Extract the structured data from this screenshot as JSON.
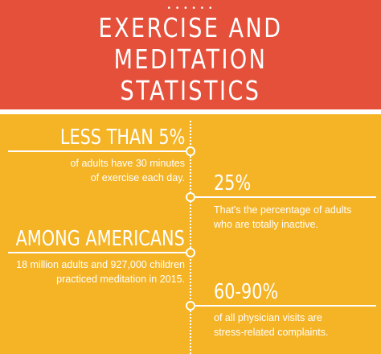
{
  "title": {
    "line1": "EXERCISE AND",
    "line2": "MEDITATION",
    "line3": "STATISTICS"
  },
  "stats": [
    {
      "heading": "LESS THAN 5%",
      "line1": "of adults have 30 minutes",
      "line2": "of exercise each day."
    },
    {
      "heading": "25%",
      "line1": "That's the percentage of adults",
      "line2": "who are totally inactive."
    },
    {
      "heading": "AMONG AMERICANS",
      "line1": "18 million adults and 927,000 children",
      "line2": "practiced meditation in 2015."
    },
    {
      "heading": "60-90%",
      "line1": "of all physician visits are",
      "line2": "stress-related complaints."
    }
  ],
  "colors": {
    "header": "#E5503B",
    "background": "#F5B426",
    "text": "#FFFFFF"
  }
}
